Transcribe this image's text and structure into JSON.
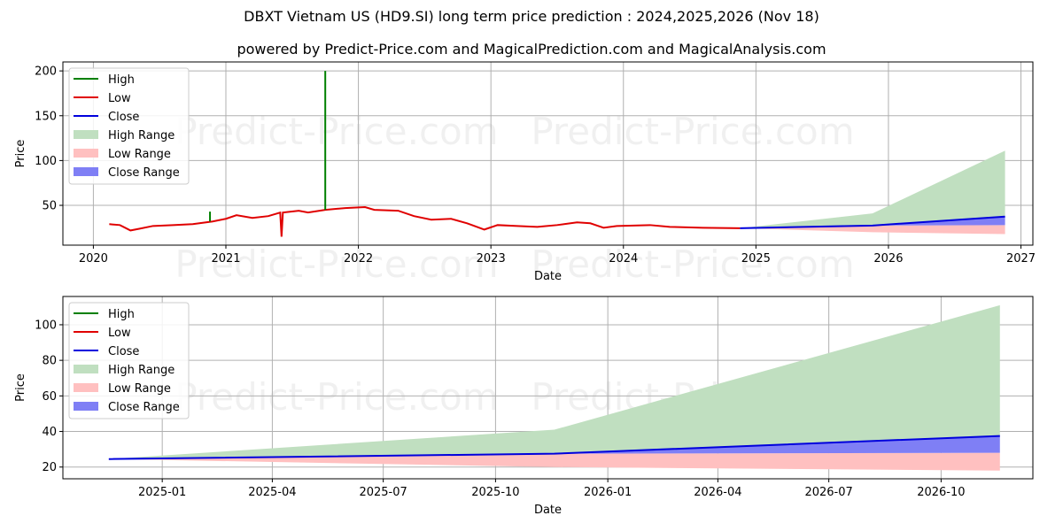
{
  "title": "DBXT Vietnam US  (HD9.SI) long term price prediction : 2024,2025,2026 (Nov 18)",
  "subtitle": "powered by Predict-Price.com and MagicalPrediction.com and MagicalAnalysis.com",
  "watermark": "Predict-Price.com",
  "colors": {
    "high": "#008000",
    "low": "#e00000",
    "close": "#0000dd",
    "high_range": "#c0dfc0",
    "low_range": "#ffc0c0",
    "close_range": "#7f7ff5"
  },
  "legend": [
    "High",
    "Low",
    "Close",
    "High Range",
    "Low Range",
    "Close Range"
  ],
  "chart_data": [
    {
      "type": "line",
      "xlabel": "Date",
      "ylabel": "Price",
      "xlim": [
        2019.77,
        2027.09
      ],
      "ylim": [
        5.6,
        210
      ],
      "yticks": [
        50,
        100,
        150,
        200
      ],
      "xticks": [
        {
          "v": 2020,
          "label": "2020"
        },
        {
          "v": 2021,
          "label": "2021"
        },
        {
          "v": 2022,
          "label": "2022"
        },
        {
          "v": 2023,
          "label": "2023"
        },
        {
          "v": 2024,
          "label": "2024"
        },
        {
          "v": 2025,
          "label": "2025"
        },
        {
          "v": 2026,
          "label": "2026"
        },
        {
          "v": 2027,
          "label": "2027"
        }
      ],
      "grid": true,
      "legend_position": "top-left",
      "history_low": [
        [
          2020.12,
          29
        ],
        [
          2020.2,
          28
        ],
        [
          2020.28,
          22
        ],
        [
          2020.35,
          24
        ],
        [
          2020.45,
          27
        ],
        [
          2020.6,
          28
        ],
        [
          2020.75,
          29
        ],
        [
          2020.9,
          32
        ],
        [
          2021.0,
          35
        ],
        [
          2021.08,
          39
        ],
        [
          2021.2,
          36
        ],
        [
          2021.32,
          38
        ],
        [
          2021.41,
          42
        ],
        [
          2021.42,
          15
        ],
        [
          2021.43,
          42
        ],
        [
          2021.55,
          44
        ],
        [
          2021.62,
          42
        ],
        [
          2021.75,
          45
        ],
        [
          2021.9,
          47
        ],
        [
          2022.05,
          48
        ],
        [
          2022.12,
          45
        ],
        [
          2022.3,
          44
        ],
        [
          2022.42,
          38
        ],
        [
          2022.55,
          34
        ],
        [
          2022.7,
          35
        ],
        [
          2022.82,
          30
        ],
        [
          2022.95,
          23
        ],
        [
          2023.05,
          28
        ],
        [
          2023.2,
          27
        ],
        [
          2023.35,
          26
        ],
        [
          2023.5,
          28
        ],
        [
          2023.65,
          31
        ],
        [
          2023.75,
          30
        ],
        [
          2023.85,
          25
        ],
        [
          2023.95,
          27
        ],
        [
          2024.2,
          28
        ],
        [
          2024.35,
          26
        ],
        [
          2024.6,
          25
        ],
        [
          2024.88,
          24.5
        ]
      ],
      "high_spikes": [
        [
          2020.88,
          32,
          43
        ],
        [
          2021.75,
          45,
          200
        ]
      ],
      "forecast": {
        "x": [
          2024.88,
          2025.88,
          2026.88
        ],
        "close": [
          24.5,
          27.5,
          37.5
        ],
        "high_range_top": [
          24.5,
          41,
          111
        ],
        "close_range_bottom": [
          24.5,
          27.5,
          28
        ],
        "low_range_bottom": [
          24.5,
          20,
          18
        ]
      }
    },
    {
      "type": "line",
      "xlabel": "Date",
      "ylabel": "Price",
      "xlim": [
        2024.777,
        2026.954
      ],
      "ylim": [
        13.4,
        115.9
      ],
      "yticks": [
        20,
        40,
        60,
        80,
        100
      ],
      "xticks": [
        {
          "v": 2025.0,
          "label": "2025-01"
        },
        {
          "v": 2025.247,
          "label": "2025-04"
        },
        {
          "v": 2025.496,
          "label": "2025-07"
        },
        {
          "v": 2025.748,
          "label": "2025-10"
        },
        {
          "v": 2026.0,
          "label": "2026-01"
        },
        {
          "v": 2026.247,
          "label": "2026-04"
        },
        {
          "v": 2026.496,
          "label": "2026-07"
        },
        {
          "v": 2026.748,
          "label": "2026-10"
        }
      ],
      "grid": true,
      "legend_position": "top-left",
      "forecast_ref": 0
    }
  ]
}
